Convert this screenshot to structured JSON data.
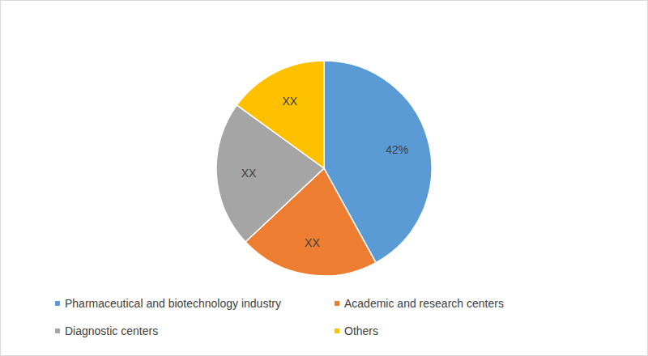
{
  "chart_data": {
    "type": "pie",
    "categories": [
      "Pharmaceutical and biotechnology industry",
      "Academic and research centers",
      "Diagnostic centers",
      "Others"
    ],
    "values": [
      42,
      21,
      22,
      15
    ],
    "value_labels": [
      "42%",
      "XX",
      "XX",
      "XX"
    ],
    "colors": [
      "#5b9bd5",
      "#ed7d31",
      "#a5a5a5",
      "#ffc000"
    ],
    "data_labels": true,
    "legend": "bottom"
  }
}
